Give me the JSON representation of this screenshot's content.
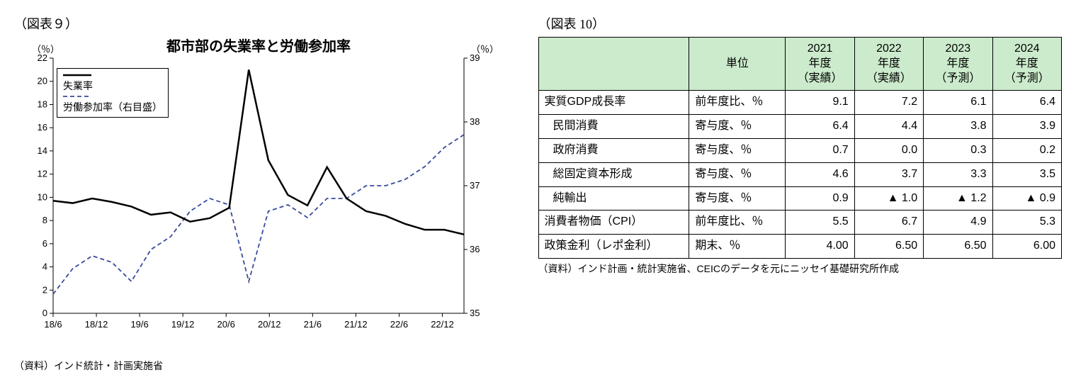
{
  "chart9": {
    "caption": "（図表９）",
    "title": "都市部の失業率と労働参加率",
    "left_unit": "（％）",
    "right_unit": "（％）",
    "source": "（資料）インド統計・計画実施省",
    "legend": {
      "s1": "失業率",
      "s2": "労働参加率（右目盛）"
    },
    "x_labels": [
      "18/6",
      "18/12",
      "19/6",
      "19/12",
      "20/6",
      "20/12",
      "21/6",
      "21/12",
      "22/6",
      "22/12"
    ],
    "left_axis": {
      "min": 0,
      "max": 22,
      "step": 2,
      "ticks": [
        "0",
        "2",
        "4",
        "6",
        "8",
        "10",
        "12",
        "14",
        "16",
        "18",
        "20",
        "22"
      ]
    },
    "right_axis": {
      "min": 35,
      "max": 39,
      "step": 1,
      "ticks": [
        "35",
        "36",
        "37",
        "38",
        "39"
      ]
    },
    "series": {
      "unemployment": {
        "color": "#000000",
        "width": 2.5,
        "dash": "",
        "y": [
          9.7,
          9.5,
          9.9,
          9.6,
          9.2,
          8.5,
          8.7,
          7.9,
          8.2,
          9.1,
          21.0,
          13.2,
          10.2,
          9.3,
          12.6,
          9.9,
          8.8,
          8.4,
          7.7,
          7.2,
          7.2,
          6.8
        ]
      },
      "participation": {
        "color": "#3a4a9a",
        "width": 1.8,
        "dash": "6,4",
        "y": [
          35.3,
          35.7,
          35.9,
          35.8,
          35.5,
          36.0,
          36.2,
          36.6,
          36.8,
          36.7,
          35.5,
          36.6,
          36.7,
          36.5,
          36.8,
          36.8,
          37.0,
          37.0,
          37.1,
          37.3,
          37.6,
          37.8
        ]
      }
    },
    "plot": {
      "font": 14,
      "title_font": 20
    }
  },
  "table10": {
    "caption": "（図表 10）",
    "source": "（資料）インド計画・統計実施省、CEICのデータを元にニッセイ基礎研究所作成",
    "columns": {
      "unit": "単位",
      "c1a": "2021",
      "c1b": "年度",
      "c1c": "（実績）",
      "c2a": "2022",
      "c2b": "年度",
      "c2c": "（実績）",
      "c3a": "2023",
      "c3b": "年度",
      "c3c": "（予測）",
      "c4a": "2024",
      "c4b": "年度",
      "c4c": "（予測）"
    },
    "rows": [
      {
        "label": "実質GDP成長率",
        "indent": false,
        "unit": "前年度比、％",
        "v": [
          "9.1",
          "7.2",
          "6.1",
          "6.4"
        ]
      },
      {
        "label": "民間消費",
        "indent": true,
        "unit": "寄与度、％",
        "v": [
          "6.4",
          "4.4",
          "3.8",
          "3.9"
        ]
      },
      {
        "label": "政府消費",
        "indent": true,
        "unit": "寄与度、％",
        "v": [
          "0.7",
          "0.0",
          "0.3",
          "0.2"
        ]
      },
      {
        "label": "総固定資本形成",
        "indent": true,
        "unit": "寄与度、％",
        "v": [
          "4.6",
          "3.7",
          "3.3",
          "3.5"
        ]
      },
      {
        "label": "純輸出",
        "indent": true,
        "unit": "寄与度、％",
        "v": [
          "0.9",
          "▲ 1.0",
          "▲ 1.2",
          "▲ 0.9"
        ]
      },
      {
        "label": "消費者物価（CPI）",
        "indent": false,
        "unit": "前年度比、％",
        "v": [
          "5.5",
          "6.7",
          "4.9",
          "5.3"
        ]
      },
      {
        "label": "政策金利（レポ金利）",
        "indent": false,
        "unit": "期末、％",
        "v": [
          "4.00",
          "6.50",
          "6.50",
          "6.00"
        ]
      }
    ]
  }
}
